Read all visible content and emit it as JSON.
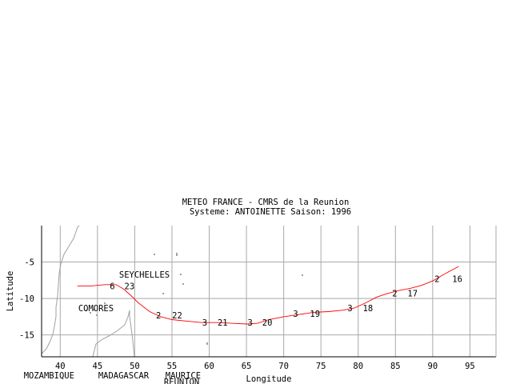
{
  "header": {
    "line1": "METEO FRANCE - CMRS de la Reunion",
    "line2": "Systeme: ANTOINETTE  Saison: 1996"
  },
  "axes": {
    "xlabel": "Longitude",
    "ylabel": "Latitude",
    "xticks": [
      40,
      45,
      50,
      55,
      60,
      65,
      70,
      75,
      80,
      85,
      90,
      95
    ],
    "yticks": [
      -5,
      -10,
      -15
    ],
    "xlim": [
      37.5,
      98.5
    ],
    "ylim": [
      -18,
      0
    ],
    "grid": true
  },
  "places": [
    {
      "label": "SEYCHELLES",
      "lon": 51.3,
      "lat": -6.7
    },
    {
      "label": "COMORES",
      "lon": 44.8,
      "lat": -11.3
    }
  ],
  "bottom_labels": [
    {
      "label": "MOZAMBIQUE",
      "lon": 38.5
    },
    {
      "label": "MADAGASCAR",
      "lon": 48.5
    },
    {
      "label": "MAURICE",
      "lon": 56.5
    },
    {
      "label": "REUNION",
      "lon": 56.3
    }
  ],
  "chart_data": {
    "type": "line",
    "series": [
      {
        "lon": [
          42.3,
          44.0,
          46.0,
          47.5,
          48.5,
          49.5,
          50.5,
          52.0,
          53.5,
          55.0,
          57.0,
          59.0,
          61.0,
          63.0,
          65.0,
          66.5,
          68.0,
          70.0,
          72.0,
          74.0,
          76.0,
          78.0,
          79.5,
          81.0,
          82.5,
          84.0,
          85.5,
          87.0,
          88.5,
          90.0,
          91.5,
          93.5
        ],
        "lat": [
          -8.3,
          -8.3,
          -8.1,
          -8.1,
          -8.7,
          -9.6,
          -10.6,
          -11.8,
          -12.5,
          -12.9,
          -13.1,
          -13.3,
          -13.3,
          -13.4,
          -13.5,
          -13.4,
          -12.9,
          -12.5,
          -12.2,
          -11.9,
          -11.8,
          -11.6,
          -11.3,
          -10.6,
          -9.8,
          -9.3,
          -8.9,
          -8.6,
          -8.2,
          -7.6,
          -6.7,
          -5.6
        ]
      }
    ],
    "annotations": [
      {
        "lon": 47.0,
        "lat": -8.3,
        "text": "6"
      },
      {
        "lon": 49.3,
        "lat": -8.3,
        "text": "23"
      },
      {
        "lon": 53.2,
        "lat": -12.3,
        "text": "2"
      },
      {
        "lon": 55.7,
        "lat": -12.3,
        "text": "22"
      },
      {
        "lon": 59.4,
        "lat": -13.3,
        "text": "3"
      },
      {
        "lon": 61.8,
        "lat": -13.3,
        "text": "21"
      },
      {
        "lon": 65.5,
        "lat": -13.3,
        "text": "3"
      },
      {
        "lon": 67.8,
        "lat": -13.3,
        "text": "20"
      },
      {
        "lon": 71.6,
        "lat": -12.1,
        "text": "3"
      },
      {
        "lon": 74.2,
        "lat": -12.1,
        "text": "19"
      },
      {
        "lon": 78.9,
        "lat": -11.3,
        "text": "3"
      },
      {
        "lon": 81.3,
        "lat": -11.3,
        "text": "18"
      },
      {
        "lon": 84.9,
        "lat": -9.3,
        "text": "2"
      },
      {
        "lon": 87.3,
        "lat": -9.3,
        "text": "17"
      },
      {
        "lon": 90.6,
        "lat": -7.3,
        "text": "2"
      },
      {
        "lon": 93.3,
        "lat": -7.3,
        "text": "16"
      }
    ]
  }
}
